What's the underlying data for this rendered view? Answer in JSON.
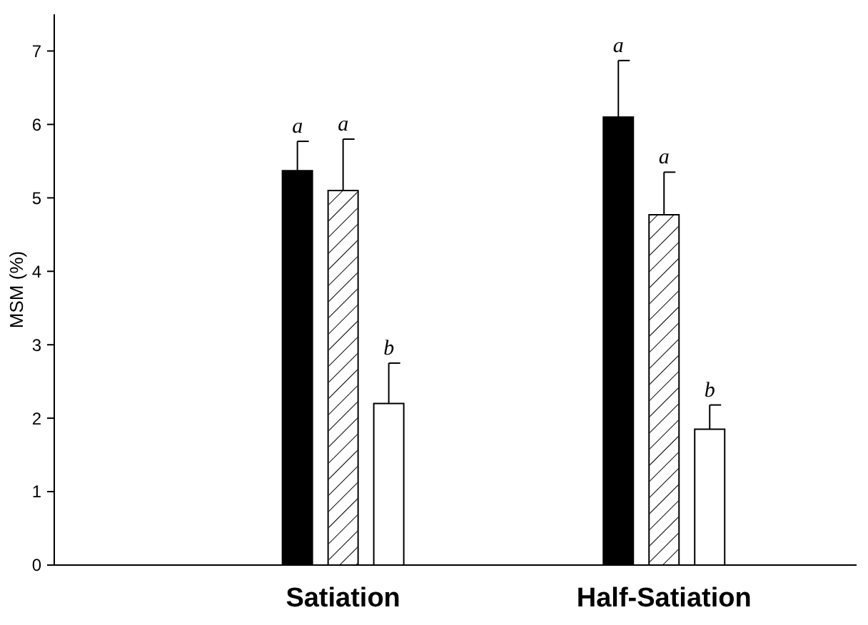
{
  "chart_data": {
    "type": "bar",
    "ylabel": "MSM (%)",
    "categories": [
      "Satiation",
      "Half-Satiation"
    ],
    "series": [
      {
        "color": "#000000",
        "values": [
          5.37,
          6.1
        ],
        "errors": [
          [
            5.37,
            5.77
          ],
          [
            6.1,
            6.87
          ]
        ]
      },
      {
        "color": "#ffffff",
        "values": [
          5.1,
          4.77
        ],
        "errors": [
          [
            5.1,
            5.8
          ],
          [
            4.77,
            5.35
          ]
        ]
      },
      {
        "color": "#ffffff",
        "values": [
          2.2,
          1.85
        ],
        "errors": [
          [
            2.2,
            2.75
          ],
          [
            1.85,
            2.18
          ]
        ]
      }
    ],
    "ylim": [
      0,
      7.5
    ],
    "yticks": [
      0,
      1,
      2,
      3,
      4,
      5,
      6,
      7
    ],
    "annotations": [
      "a",
      "a",
      "b",
      "a",
      "a",
      "b"
    ]
  }
}
